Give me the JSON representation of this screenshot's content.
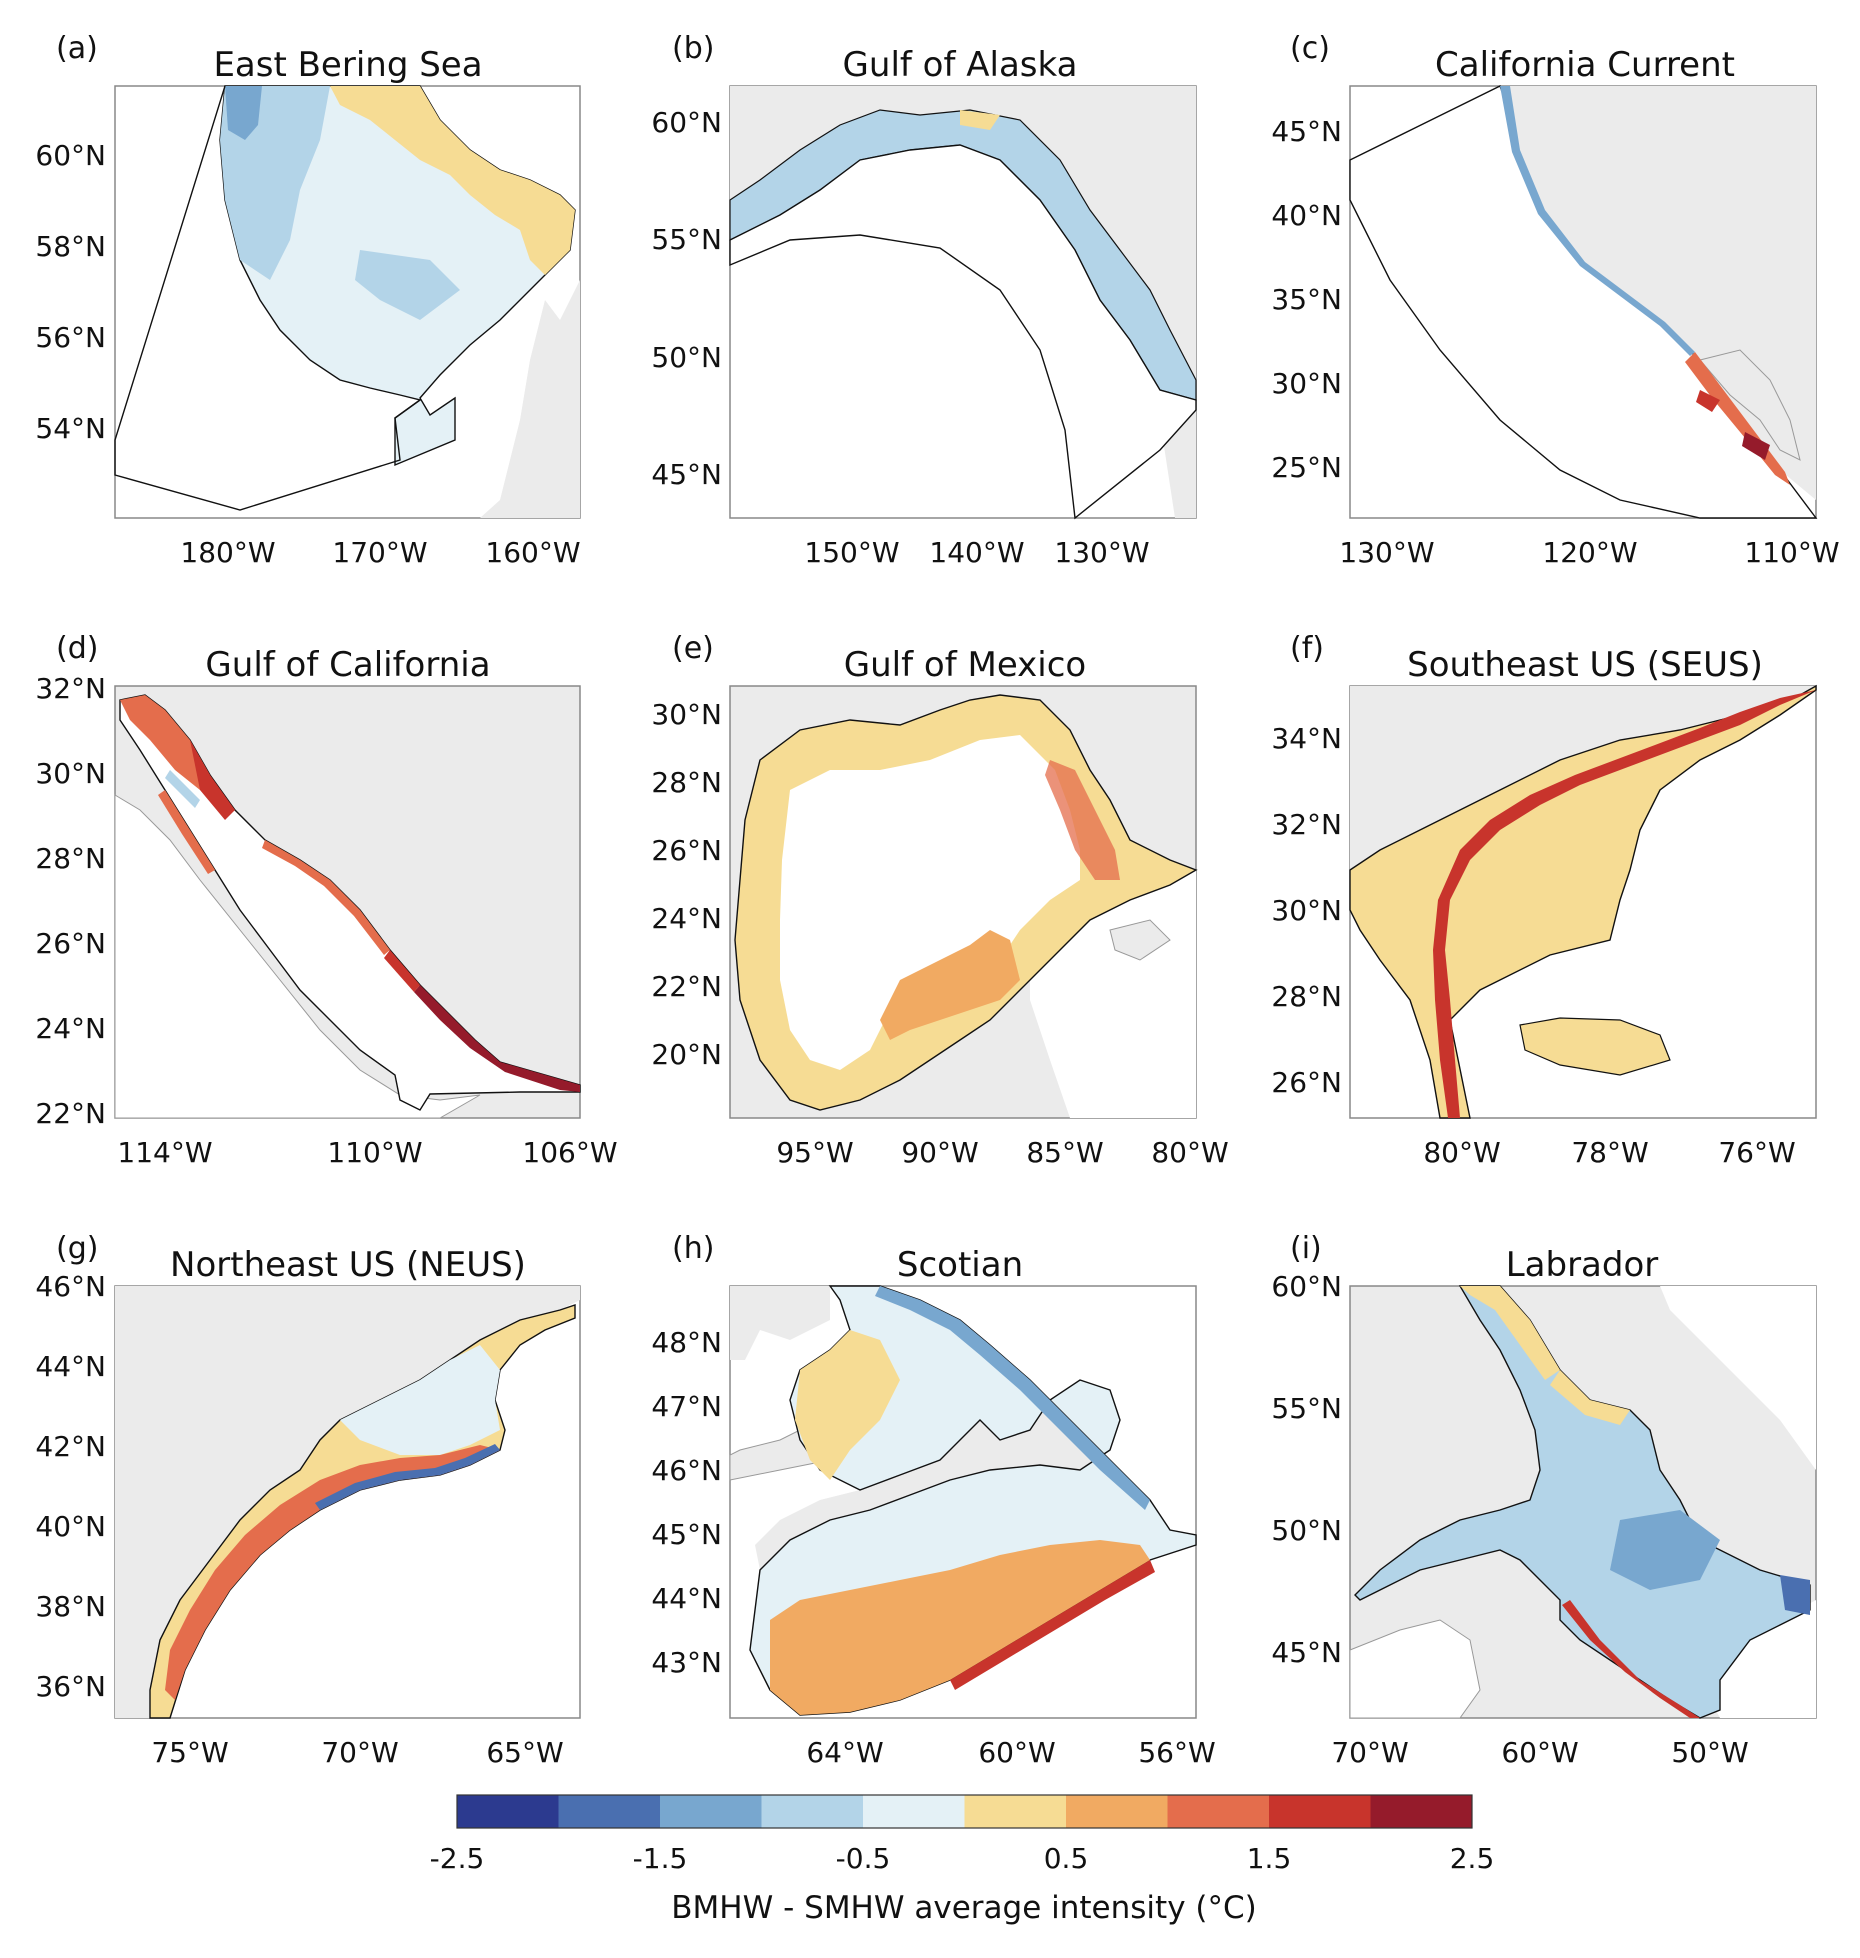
{
  "figure": {
    "colorbar": {
      "title": "BMHW - SMHW average intensity (°C)",
      "ticks": [
        "-2.5",
        "-1.5",
        "-0.5",
        "0.5",
        "1.5",
        "2.5"
      ],
      "range": [
        -2.5,
        2.5
      ],
      "colors": [
        "#2c3a8f",
        "#4a6fb0",
        "#78a7cf",
        "#b3d4e8",
        "#e4f1f6",
        "#f6dc94",
        "#f1aa62",
        "#e46d4c",
        "#c8342c",
        "#951b2b"
      ]
    },
    "land_color": "#ebebeb"
  },
  "panels": [
    {
      "id": "a",
      "label": "(a)",
      "title": "East Bering Sea",
      "yticks": [
        "60°N",
        "58°N",
        "56°N",
        "54°N"
      ],
      "xticks": [
        "180°W",
        "170°W",
        "160°W"
      ],
      "dominant": "cool"
    },
    {
      "id": "b",
      "label": "(b)",
      "title": "Gulf of Alaska",
      "yticks": [
        "60°N",
        "55°N",
        "50°N",
        "45°N"
      ],
      "xticks": [
        "150°W",
        "140°W",
        "130°W"
      ],
      "dominant": "cool"
    },
    {
      "id": "c",
      "label": "(c)",
      "title": "California Current",
      "yticks": [
        "45°N",
        "40°N",
        "35°N",
        "30°N",
        "25°N"
      ],
      "xticks": [
        "130°W",
        "120°W",
        "110°W"
      ],
      "dominant": "mixed"
    },
    {
      "id": "d",
      "label": "(d)",
      "title": "Gulf of California",
      "yticks": [
        "32°N",
        "30°N",
        "28°N",
        "26°N",
        "24°N",
        "22°N"
      ],
      "xticks": [
        "114°W",
        "110°W",
        "106°W"
      ],
      "dominant": "warm"
    },
    {
      "id": "e",
      "label": "(e)",
      "title": "Gulf of Mexico",
      "yticks": [
        "30°N",
        "28°N",
        "26°N",
        "24°N",
        "22°N",
        "20°N"
      ],
      "xticks": [
        "95°W",
        "90°W",
        "85°W",
        "80°W"
      ],
      "dominant": "warm"
    },
    {
      "id": "f",
      "label": "(f)",
      "title": "Southeast US (SEUS)",
      "yticks": [
        "34°N",
        "32°N",
        "30°N",
        "28°N",
        "26°N"
      ],
      "xticks": [
        "80°W",
        "78°W",
        "76°W"
      ],
      "dominant": "warm"
    },
    {
      "id": "g",
      "label": "(g)",
      "title": "Northeast US (NEUS)",
      "yticks": [
        "46°N",
        "44°N",
        "42°N",
        "40°N",
        "38°N",
        "36°N"
      ],
      "xticks": [
        "75°W",
        "70°W",
        "65°W"
      ],
      "dominant": "warm"
    },
    {
      "id": "h",
      "label": "(h)",
      "title": "Scotian",
      "yticks": [
        "48°N",
        "47°N",
        "46°N",
        "45°N",
        "44°N",
        "43°N"
      ],
      "xticks": [
        "64°W",
        "60°W",
        "56°W"
      ],
      "dominant": "mixed"
    },
    {
      "id": "i",
      "label": "(i)",
      "title": "Labrador",
      "yticks": [
        "60°N",
        "55°N",
        "50°N",
        "45°N"
      ],
      "xticks": [
        "70°W",
        "60°W",
        "50°W"
      ],
      "dominant": "cool"
    }
  ]
}
